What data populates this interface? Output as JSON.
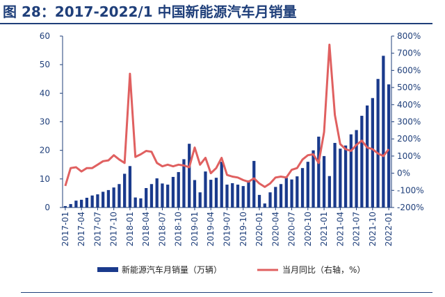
{
  "figure": {
    "title": "图 28：2017-2022/1 中国新能源汽车月销量",
    "title_color": "#1f3f7a"
  },
  "chart_data": {
    "type": "bar",
    "x_tick_labels": [
      "2017-01",
      "2017-04",
      "2017-07",
      "2017-10",
      "2018-01",
      "2018-04",
      "2018-07",
      "2018-10",
      "2019-01",
      "2019-04",
      "2019-07",
      "2019-10",
      "2020-01",
      "2020-04",
      "2020-07",
      "2020-10",
      "2021-01",
      "2021-04",
      "2021-07",
      "2021-10",
      "2022-01"
    ],
    "categories": [
      "2017-01",
      "2017-02",
      "2017-03",
      "2017-04",
      "2017-05",
      "2017-06",
      "2017-07",
      "2017-08",
      "2017-09",
      "2017-10",
      "2017-11",
      "2017-12",
      "2018-01",
      "2018-02",
      "2018-03",
      "2018-04",
      "2018-05",
      "2018-06",
      "2018-07",
      "2018-08",
      "2018-09",
      "2018-10",
      "2018-11",
      "2018-12",
      "2019-01",
      "2019-02",
      "2019-03",
      "2019-04",
      "2019-05",
      "2019-06",
      "2019-07",
      "2019-08",
      "2019-09",
      "2019-10",
      "2019-11",
      "2019-12",
      "2020-01",
      "2020-02",
      "2020-03",
      "2020-04",
      "2020-05",
      "2020-06",
      "2020-07",
      "2020-08",
      "2020-09",
      "2020-10",
      "2020-11",
      "2020-12",
      "2021-01",
      "2021-02",
      "2021-03",
      "2021-04",
      "2021-05",
      "2021-06",
      "2021-07",
      "2021-08",
      "2021-09",
      "2021-10",
      "2021-11",
      "2021-12",
      "2022-01"
    ],
    "series": [
      {
        "name": "新能源汽车月销量（万辆）",
        "axis": "left",
        "color": "#1a3a8c",
        "values": [
          0.5,
          1.2,
          2.4,
          2.7,
          3.4,
          4.2,
          4.6,
          5.5,
          6.1,
          7.0,
          8.2,
          11.8,
          14.5,
          3.5,
          3.2,
          6.8,
          8.2,
          10.2,
          8.4,
          8.0,
          10.7,
          12.4,
          16.9,
          22.3,
          9.6,
          5.3,
          12.6,
          9.7,
          10.4,
          16.0,
          8.0,
          8.5,
          8.0,
          7.5,
          9.5,
          16.3,
          4.4,
          1.4,
          5.3,
          7.2,
          8.2,
          10.4,
          9.8,
          10.9,
          13.8,
          16.0,
          20.0,
          24.8,
          18.0,
          11.0,
          22.6,
          20.6,
          21.7,
          25.6,
          27.1,
          32.1,
          35.7,
          38.3,
          45.0,
          53.1,
          43.1
        ]
      },
      {
        "name": "当月同比（右轴，%）",
        "axis": "right",
        "color": "#e06060",
        "values": [
          -74,
          30,
          35,
          10,
          30,
          30,
          50,
          70,
          75,
          105,
          80,
          60,
          580,
          95,
          110,
          130,
          125,
          60,
          40,
          50,
          40,
          50,
          45,
          35,
          150,
          50,
          90,
          0,
          30,
          90,
          -10,
          -20,
          -25,
          -40,
          -50,
          -30,
          -60,
          -80,
          -60,
          -25,
          -20,
          -25,
          20,
          30,
          80,
          105,
          110,
          60,
          240,
          750,
          340,
          170,
          140,
          130,
          165,
          190,
          150,
          140,
          115,
          100,
          140
        ]
      }
    ],
    "y_left": {
      "min": 0,
      "max": 60,
      "ticks": [
        0,
        10,
        20,
        30,
        40,
        50,
        60
      ]
    },
    "y_right": {
      "min": -200,
      "max": 800,
      "ticks": [
        "-200%",
        "-100%",
        "0%",
        "100%",
        "200%",
        "300%",
        "400%",
        "500%",
        "600%",
        "700%",
        "800%"
      ]
    },
    "legend_placement": "bottom",
    "grid": false
  }
}
